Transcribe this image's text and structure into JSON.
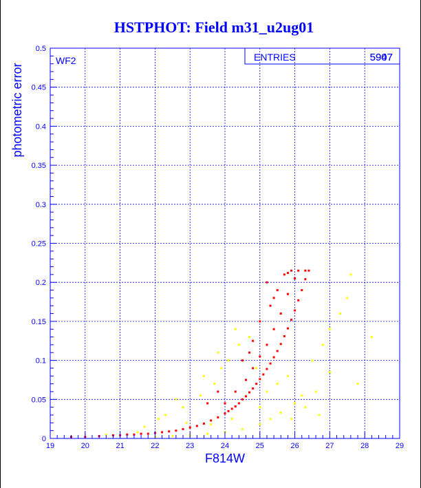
{
  "chart_data": {
    "type": "scatter",
    "title": "HSTPHOT: Field m31_u2ug01",
    "xlabel": "F814W",
    "ylabel": "photometric error",
    "panel_label": "WF2",
    "stats": {
      "label": "ENTRIES",
      "value": "5907",
      "value_overprint": "5947"
    },
    "xlim": [
      19,
      29
    ],
    "ylim": [
      0,
      0.5
    ],
    "x_ticks": [
      "19",
      "20",
      "21",
      "22",
      "23",
      "24",
      "25",
      "26",
      "27",
      "28",
      "29"
    ],
    "y_ticks": [
      "0",
      "0.05",
      "0.1",
      "0.15",
      "0.2",
      "0.25",
      "0.3",
      "0.35",
      "0.4",
      "0.45",
      "0.5"
    ],
    "grid": true,
    "colors": {
      "title": "#0000ff",
      "axis": "#0000ff",
      "grid": "#0000ff",
      "red": "#ff0000",
      "yellow": "#ffff00"
    },
    "series": [
      {
        "color": "#ff0000",
        "points": [
          [
            19.6,
            0.002
          ],
          [
            20.0,
            0.002
          ],
          [
            20.4,
            0.003
          ],
          [
            20.8,
            0.004
          ],
          [
            21.0,
            0.004
          ],
          [
            21.2,
            0.005
          ],
          [
            21.4,
            0.005
          ],
          [
            21.6,
            0.006
          ],
          [
            21.8,
            0.006
          ],
          [
            22.0,
            0.007
          ],
          [
            22.2,
            0.008
          ],
          [
            22.4,
            0.009
          ],
          [
            22.6,
            0.01
          ],
          [
            22.8,
            0.012
          ],
          [
            23.0,
            0.014
          ],
          [
            23.2,
            0.016
          ],
          [
            23.4,
            0.019
          ],
          [
            23.6,
            0.023
          ],
          [
            23.8,
            0.027
          ],
          [
            24.0,
            0.032
          ],
          [
            24.1,
            0.035
          ],
          [
            24.2,
            0.038
          ],
          [
            24.3,
            0.041
          ],
          [
            24.4,
            0.045
          ],
          [
            24.5,
            0.05
          ],
          [
            24.6,
            0.054
          ],
          [
            24.7,
            0.059
          ],
          [
            24.8,
            0.064
          ],
          [
            24.9,
            0.07
          ],
          [
            25.0,
            0.076
          ],
          [
            25.1,
            0.082
          ],
          [
            25.2,
            0.089
          ],
          [
            25.3,
            0.096
          ],
          [
            25.4,
            0.104
          ],
          [
            25.5,
            0.112
          ],
          [
            25.6,
            0.121
          ],
          [
            25.7,
            0.131
          ],
          [
            25.8,
            0.141
          ],
          [
            25.9,
            0.152
          ],
          [
            26.0,
            0.164
          ],
          [
            26.1,
            0.177
          ],
          [
            26.2,
            0.19
          ],
          [
            26.3,
            0.204
          ],
          [
            26.4,
            0.215
          ],
          [
            24.0,
            0.045
          ],
          [
            24.3,
            0.06
          ],
          [
            24.6,
            0.075
          ],
          [
            24.8,
            0.09
          ],
          [
            25.0,
            0.105
          ],
          [
            25.2,
            0.12
          ],
          [
            25.4,
            0.14
          ],
          [
            25.6,
            0.16
          ],
          [
            25.8,
            0.185
          ],
          [
            26.0,
            0.205
          ],
          [
            25.5,
            0.19
          ],
          [
            25.7,
            0.21
          ],
          [
            25.9,
            0.215
          ],
          [
            26.1,
            0.215
          ],
          [
            25.3,
            0.17
          ],
          [
            24.8,
            0.125
          ],
          [
            24.5,
            0.1
          ],
          [
            23.8,
            0.06
          ],
          [
            23.5,
            0.045
          ],
          [
            25.2,
            0.2
          ],
          [
            25.0,
            0.15
          ],
          [
            24.7,
            0.11
          ],
          [
            25.4,
            0.18
          ],
          [
            25.8,
            0.212
          ],
          [
            26.3,
            0.215
          ]
        ]
      },
      {
        "color": "#ffff00",
        "points": [
          [
            20.6,
            0.005
          ],
          [
            21.5,
            0.008
          ],
          [
            22.0,
            0.002
          ],
          [
            22.5,
            0.003
          ],
          [
            23.0,
            0.004
          ],
          [
            23.5,
            0.006
          ],
          [
            24.0,
            0.008
          ],
          [
            24.5,
            0.012
          ],
          [
            25.0,
            0.018
          ],
          [
            25.3,
            0.025
          ],
          [
            25.6,
            0.033
          ],
          [
            26.0,
            0.045
          ],
          [
            26.2,
            0.055
          ],
          [
            22.3,
            0.03
          ],
          [
            22.8,
            0.04
          ],
          [
            23.3,
            0.055
          ],
          [
            23.7,
            0.07
          ],
          [
            23.9,
            0.09
          ],
          [
            24.1,
            0.1
          ],
          [
            24.4,
            0.12
          ],
          [
            24.7,
            0.13
          ],
          [
            25.2,
            0.06
          ],
          [
            25.8,
            0.08
          ],
          [
            26.5,
            0.1
          ],
          [
            26.8,
            0.12
          ],
          [
            27.0,
            0.14
          ],
          [
            27.3,
            0.16
          ],
          [
            27.5,
            0.18
          ],
          [
            27.0,
            0.085
          ],
          [
            26.6,
            0.06
          ],
          [
            25.0,
            0.04
          ],
          [
            24.2,
            0.025
          ],
          [
            23.6,
            0.018
          ],
          [
            22.9,
            0.02
          ],
          [
            22.1,
            0.025
          ],
          [
            21.7,
            0.015
          ],
          [
            24.9,
            0.09
          ],
          [
            25.5,
            0.07
          ],
          [
            26.3,
            0.04
          ],
          [
            27.6,
            0.21
          ],
          [
            28.2,
            0.13
          ],
          [
            27.8,
            0.07
          ],
          [
            24.3,
            0.14
          ],
          [
            23.8,
            0.11
          ],
          [
            25.9,
            0.025
          ],
          [
            26.7,
            0.03
          ],
          [
            23.4,
            0.08
          ],
          [
            22.6,
            0.05
          ]
        ]
      }
    ]
  }
}
